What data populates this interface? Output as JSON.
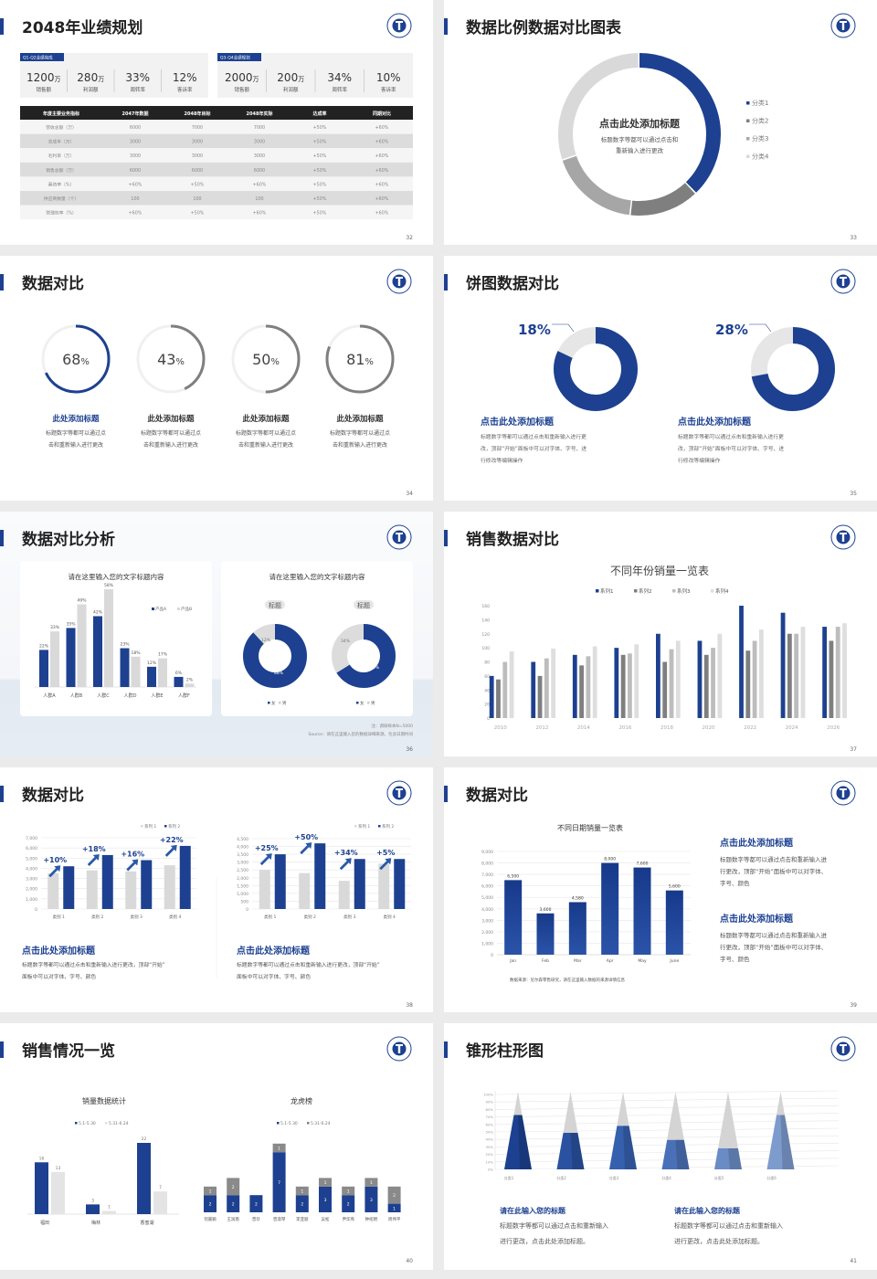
{
  "colors": {
    "blue": "#1d4190",
    "dark_gray": "#7f7f7f",
    "mid_gray": "#a6a6a6",
    "light_gray": "#d9d9d9"
  },
  "s32": {
    "title": "2048年业绩规划",
    "page": "32",
    "groups": [
      {
        "tag": "Q1-Q2业绩完成",
        "kpis": [
          {
            "v": "1200",
            "u": "万",
            "l": "销售额"
          },
          {
            "v": "280",
            "u": "万",
            "l": "利润额"
          },
          {
            "v": "33%",
            "u": "",
            "l": "周转率"
          },
          {
            "v": "12%",
            "u": "",
            "l": "客诉率"
          }
        ]
      },
      {
        "tag": "Q3-Q4业绩规划",
        "kpis": [
          {
            "v": "2000",
            "u": "万",
            "l": "销售额"
          },
          {
            "v": "200",
            "u": "万",
            "l": "利润额"
          },
          {
            "v": "34%",
            "u": "",
            "l": "周转率"
          },
          {
            "v": "10%",
            "u": "",
            "l": "客诉率"
          }
        ]
      }
    ],
    "table": {
      "headers": [
        "年度主要业务指标",
        "2047年数据",
        "2048年目标",
        "2048年实际",
        "达成率",
        "同期对比"
      ],
      "rows": [
        [
          "营收总额（万）",
          "6000",
          "7000",
          "7000",
          "+50%",
          "+60%"
        ],
        [
          "总成本（万）",
          "3000",
          "3000",
          "3000",
          "+50%",
          "+60%"
        ],
        [
          "毛利率（万）",
          "3000",
          "3000",
          "3000",
          "+50%",
          "+60%"
        ],
        [
          "销售总额（万）",
          "6000",
          "6000",
          "6000",
          "+50%",
          "+60%"
        ],
        [
          "募资率（%）",
          "+60%",
          "+50%",
          "+60%",
          "+50%",
          "+60%"
        ],
        [
          "供应商数量（个）",
          "100",
          "100",
          "100",
          "+50%",
          "+60%"
        ],
        [
          "管理效率（%）",
          "+60%",
          "+50%",
          "+60%",
          "+50%",
          "+60%"
        ]
      ]
    }
  },
  "s33": {
    "title": "数据比例数据对比图表",
    "page": "33",
    "center_title": "点击此处添加标题",
    "center_desc": [
      "标题数字等都可以通过点击和",
      "重新输入进行更改"
    ],
    "chart_data": {
      "type": "pie",
      "donut": true,
      "categories": [
        "分类1",
        "分类2",
        "分类3",
        "分类4"
      ],
      "values": [
        38,
        14,
        18,
        30
      ],
      "colors": [
        "#1d4190",
        "#7f7f7f",
        "#a6a6a6",
        "#d9d9d9"
      ],
      "legend": "right"
    }
  },
  "s34": {
    "title": "数据对比",
    "page": "34",
    "items": [
      {
        "value": "68",
        "unit": "%",
        "progress": 68,
        "title": "此处添加标题",
        "desc": [
          "标题数字等都可以通过点",
          "击和重新输入进行更改"
        ],
        "color": "#1d4190"
      },
      {
        "value": "43",
        "unit": "%",
        "progress": 43,
        "title": "此处添加标题",
        "desc": [
          "标题数字等都可以通过点",
          "击和重新输入进行更改"
        ],
        "color": "#7f7f7f"
      },
      {
        "value": "50",
        "unit": "%",
        "progress": 50,
        "title": "此处添加标题",
        "desc": [
          "标题数字等都可以通过点",
          "击和重新输入进行更改"
        ],
        "color": "#7f7f7f"
      },
      {
        "value": "81",
        "unit": "%",
        "progress": 81,
        "title": "此处添加标题",
        "desc": [
          "标题数字等都可以通过点",
          "击和重新输入进行更改"
        ],
        "color": "#7f7f7f"
      }
    ]
  },
  "s35": {
    "title": "饼图数据对比",
    "page": "35",
    "items": [
      {
        "label": "18%",
        "value": 18,
        "title": "点击此处添加标题",
        "desc": [
          "标题数字等都可以通过点击和重新输入进行更",
          "改，顶部“开始”面板中可以对字体、字号、进",
          "行修改等编辑操作"
        ]
      },
      {
        "label": "28%",
        "value": 28,
        "title": "点击此处添加标题",
        "desc": [
          "标题数字等都可以通过点击和重新输入进行更",
          "改，顶部“开始”面板中可以对字体、字号、进",
          "行修改等编辑操作"
        ]
      }
    ]
  },
  "s36": {
    "title": "数据对比分析",
    "page": "36",
    "card1": {
      "title": "请在这里输入您的文字标题内容",
      "chart_data": {
        "type": "bar",
        "categories": [
          "人群A",
          "人群B",
          "人群C",
          "人群D",
          "人群E",
          "人群F"
        ],
        "series": [
          {
            "name": "产品A",
            "values": [
              22,
              35,
              42,
              23,
              12,
              6
            ],
            "labels": [
              "22%",
              "35%",
              "42%",
              "23%",
              "12%",
              "6%"
            ]
          },
          {
            "name": "产品B",
            "values": [
              33,
              49,
              58,
              18,
              17,
              2
            ],
            "labels": [
              "33%",
              "49%",
              "58%",
              "18%",
              "17%",
              "2%"
            ]
          }
        ],
        "legend": "top-right"
      }
    },
    "card2": {
      "title": "请在这里输入您的文字标题内容",
      "chart_data": [
        {
          "type": "pie",
          "donut": true,
          "pill": "标题",
          "categories": [
            "女",
            "男"
          ],
          "values": [
            88,
            12
          ],
          "labels": [
            "88%",
            "12%"
          ]
        },
        {
          "type": "pie",
          "donut": true,
          "pill": "标题",
          "categories": [
            "女",
            "男"
          ],
          "values": [
            66,
            34
          ],
          "labels": [
            "66%",
            "34%"
          ]
        }
      ]
    },
    "note": "注：调研样本N=5000",
    "source": "Source：请在这里输入您的数据详细来源，包含日期时间"
  },
  "s37": {
    "title": "销售数据对比",
    "page": "37",
    "chart_data": {
      "type": "bar",
      "title": "不同年份销量一览表",
      "categories": [
        "2010",
        "2012",
        "2014",
        "2016",
        "2018",
        "2020",
        "2022",
        "2024",
        "2026"
      ],
      "yticks": [
        "0",
        "20",
        "40",
        "60",
        "80",
        "100",
        "120",
        "140",
        "160"
      ],
      "ylim": [
        0,
        160
      ],
      "legend": "top",
      "series": [
        {
          "name": "系列1",
          "values": [
            60,
            80,
            90,
            100,
            120,
            110,
            160,
            150,
            130
          ]
        },
        {
          "name": "系列2",
          "values": [
            55,
            60,
            75,
            90,
            80,
            90,
            96,
            120,
            110
          ]
        },
        {
          "name": "系列3",
          "values": [
            80,
            85,
            88,
            92,
            98,
            100,
            110,
            120,
            130
          ]
        },
        {
          "name": "系列4",
          "values": [
            95,
            99,
            102,
            105,
            110,
            120,
            126,
            130,
            135
          ]
        }
      ]
    }
  },
  "s38": {
    "title": "数据对比",
    "page": "38",
    "charts": [
      {
        "chart_data": {
          "type": "bar",
          "categories": [
            "类别 1",
            "类别 2",
            "类别 3",
            "类别 4"
          ],
          "yticks": [
            "0",
            "1,000",
            "2,000",
            "3,000",
            "4,000",
            "5,000",
            "6,000",
            "7,000"
          ],
          "ylim": [
            0,
            7000
          ],
          "legend": "top-right",
          "series": [
            {
              "name": "系列 1",
              "values": [
                3500,
                3800,
                3700,
                4300
              ]
            },
            {
              "name": "系列 2",
              "values": [
                4200,
                5300,
                4800,
                6200
              ]
            }
          ],
          "annotations": [
            "+10%",
            "+18%",
            "+16%",
            "+22%"
          ]
        },
        "title": "点击此处添加标题",
        "desc": [
          "标题数字等都可以通过点击和重新输入进行更改，顶部“开始”",
          "面板中可以对字体、字号、颜色"
        ]
      },
      {
        "chart_data": {
          "type": "bar",
          "categories": [
            "类别 1",
            "类别 2",
            "类别 3",
            "类别 4"
          ],
          "yticks": [
            "0",
            "500",
            "1,000",
            "1,500",
            "2,000",
            "2,500",
            "3,000",
            "3,500",
            "4,000",
            "4,500"
          ],
          "ylim": [
            0,
            4500
          ],
          "legend": "top-right",
          "series": [
            {
              "name": "系列 1",
              "values": [
                2500,
                2300,
                1800,
                2900
              ]
            },
            {
              "name": "系列 2",
              "values": [
                3500,
                4200,
                3200,
                3200
              ]
            }
          ],
          "annotations": [
            "+25%",
            "+50%",
            "+34%",
            "+5%"
          ]
        },
        "title": "点击此处添加标题",
        "desc": [
          "标题数字等都可以通过点击和重新输入进行更改，顶部“开始”",
          "面板中可以对字体、字号、颜色"
        ]
      }
    ]
  },
  "s39": {
    "title": "数据对比",
    "page": "39",
    "chart_data": {
      "type": "bar",
      "title": "不同日期销量一览表",
      "categories": [
        "Jan",
        "Feb",
        "Mar",
        "Apr",
        "May",
        "June"
      ],
      "values": [
        6500,
        3600,
        4580,
        8000,
        7600,
        5600
      ],
      "labels": [
        "6,500",
        "3,600",
        "4,580",
        "8,000",
        "7,600",
        "5,600"
      ],
      "yticks": [
        "0",
        "1,000",
        "2,000",
        "3,000",
        "4,000",
        "5,000",
        "6,000",
        "7,000",
        "8,000",
        "9,000"
      ],
      "ylim": [
        0,
        9000
      ]
    },
    "source": "数据来源：尼尔森零售研究，请在这里输入数据的来源详情信息",
    "blocks": [
      {
        "title": "点击此处添加标题",
        "desc": [
          "标题数字等都可以通过点击和重新输入进",
          "行更改，顶部“开始”面板中可以对字体、",
          "字号、颜色"
        ]
      },
      {
        "title": "点击此处添加标题",
        "desc": [
          "标题数字等都可以通过点击和重新输入进",
          "行更改，顶部“开始”面板中可以对字体、",
          "字号、颜色"
        ]
      }
    ]
  },
  "s40": {
    "title": "销售情况一览",
    "page": "40",
    "charts": [
      {
        "chart_data": {
          "type": "bar",
          "title": "销量数据统计",
          "categories": [
            "福田",
            "梅林",
            "香蜜湖"
          ],
          "legend": "top",
          "series": [
            {
              "name": "5.1-5.30",
              "values": [
                16,
                3,
                22
              ]
            },
            {
              "name": "5.31-6.24",
              "values": [
                13,
                1,
                7
              ]
            }
          ]
        }
      },
      {
        "chart_data": {
          "type": "bar",
          "stacked": true,
          "title": "龙虎榜",
          "categories": [
            "何嘉颖",
            "王润南",
            "曾珍",
            "曾淑琴",
            "李亚丽",
            "吴松",
            "尹华燕",
            "钟绍明",
            "周伟平"
          ],
          "legend": "top",
          "series": [
            {
              "name": "5.1-5.30",
              "values": [
                2,
                2,
                2,
                7,
                2,
                3,
                2,
                3,
                1
              ]
            },
            {
              "name": "5.31-6.24",
              "values": [
                1,
                2,
                0,
                1,
                1,
                1,
                1,
                1,
                2
              ]
            }
          ]
        }
      }
    ]
  },
  "s41": {
    "title": "锥形柱形图",
    "page": "41",
    "chart_data": {
      "type": "bar",
      "shape": "cone",
      "categories": [
        "分类1",
        "分类2",
        "分类3",
        "分类4",
        "分类5",
        "分类6"
      ],
      "values": [
        70,
        47,
        56,
        38,
        27,
        70
      ],
      "yticks": [
        "0%",
        "10%",
        "20%",
        "30%",
        "40%",
        "50%",
        "60%",
        "70%",
        "80%",
        "90%",
        "100%"
      ],
      "ylim": [
        0,
        100
      ]
    },
    "blocks": [
      {
        "title": "请在此输入您的标题",
        "desc": [
          "标题数字等都可以通过点击和重新输入",
          "进行更改，点击此处添加标题。"
        ]
      },
      {
        "title": "请在此输入您的标题",
        "desc": [
          "标题数字等都可以通过点击和重新输入",
          "进行更改，点击此处添加标题。"
        ]
      }
    ]
  }
}
